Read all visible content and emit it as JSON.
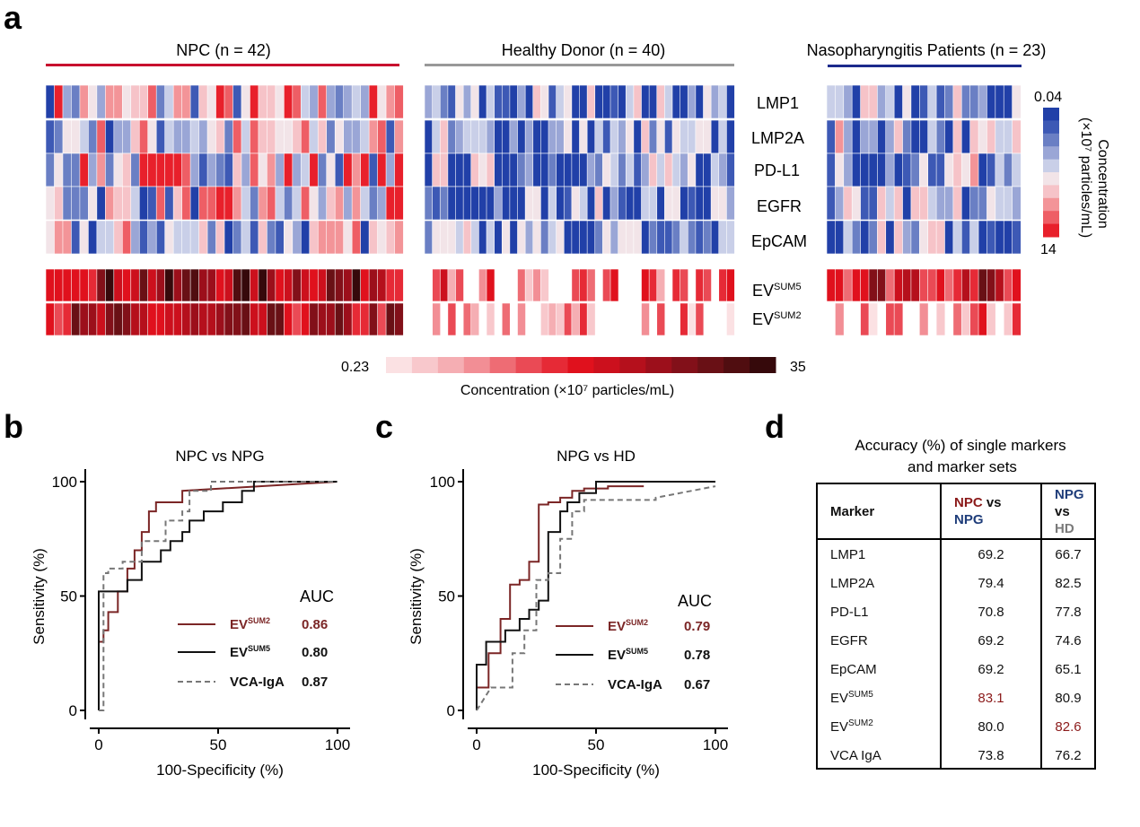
{
  "panel_letters": {
    "a": "a",
    "b": "b",
    "c": "c",
    "d": "d"
  },
  "heatmap": {
    "groups": [
      {
        "label": "NPC (n = 42)",
        "n": 42,
        "color": "#c8102e"
      },
      {
        "label": "Healthy Donor (n = 40)",
        "n": 40,
        "color": "#999999"
      },
      {
        "label": "Nasopharyngitis Patients (n = 23)",
        "n": 23,
        "color": "#1c2a8c"
      }
    ],
    "markers": [
      "LMP1",
      "LMP2A",
      "PD-L1",
      "EGFR",
      "EpCAM"
    ],
    "sum_rows": [
      {
        "base": "EV",
        "sup": "SUM5"
      },
      {
        "base": "EV",
        "sup": "SUM2"
      }
    ],
    "marker_scale": {
      "min_label": "0.04",
      "max_label": "14",
      "title": "Concentration",
      "unit": "(×10⁷ particles/mL)",
      "colors": [
        "#2140a8",
        "#3d59b5",
        "#6a7fc4",
        "#9aa6d6",
        "#c9cfe8",
        "#f2e4e8",
        "#f6c3c8",
        "#f39498",
        "#ee5e65",
        "#e8202b"
      ]
    },
    "sum_scale": {
      "min_label": "0.23",
      "max_label": "35",
      "title": "Concentration (×10⁷ particles/mL)",
      "colors": [
        "#fbe1e3",
        "#f8c8cc",
        "#f5aeb3",
        "#f28e95",
        "#ee6c74",
        "#ea4a55",
        "#e62a36",
        "#e0111d",
        "#cc101d",
        "#b5101c",
        "#9c0f1b",
        "#821019",
        "#691015",
        "#500d10",
        "#36090b"
      ]
    }
  },
  "chart_data": [
    {
      "type": "line",
      "panel": "b",
      "title": "NPC vs NPG",
      "xlabel": "100-Specificity (%)",
      "ylabel": "Sensitivity (%)",
      "xlim": [
        0,
        100
      ],
      "ylim": [
        0,
        100
      ],
      "xticks": [
        0,
        50,
        100
      ],
      "yticks": [
        0,
        50,
        100
      ],
      "legend_title": "AUC",
      "series": [
        {
          "name": "EVSUM2",
          "name_base": "EV",
          "name_sup": "SUM2",
          "auc": "0.86",
          "color": "#7b2626",
          "dash": "",
          "x": [
            0,
            0,
            2,
            2,
            4,
            4,
            8,
            8,
            12,
            12,
            15,
            15,
            18,
            18,
            21,
            21,
            24,
            24,
            26,
            26,
            35,
            35,
            100
          ],
          "y": [
            0,
            30,
            30,
            35,
            35,
            43,
            43,
            52,
            52,
            62,
            62,
            70,
            70,
            78,
            78,
            87,
            87,
            91,
            91,
            91,
            91,
            96,
            100
          ]
        },
        {
          "name": "EVSUM5",
          "name_base": "EV",
          "name_sup": "SUM5",
          "auc": "0.80",
          "color": "#111111",
          "dash": "",
          "x": [
            0,
            0,
            12,
            12,
            18,
            18,
            26,
            26,
            30,
            30,
            35,
            35,
            38,
            38,
            44,
            44,
            52,
            52,
            60,
            60,
            65,
            65,
            75,
            75,
            100
          ],
          "y": [
            0,
            52,
            52,
            57,
            57,
            65,
            65,
            70,
            70,
            74,
            74,
            78,
            78,
            83,
            83,
            87,
            87,
            91,
            91,
            96,
            96,
            100,
            100,
            100,
            100
          ]
        },
        {
          "name": "VCA-IgA",
          "auc": "0.87",
          "color": "#777777",
          "dash": "6,4",
          "x": [
            0,
            2,
            2,
            4,
            4,
            10,
            10,
            18,
            18,
            28,
            28,
            35,
            35,
            38,
            38,
            47,
            47,
            100
          ],
          "y": [
            0,
            0,
            60,
            60,
            62,
            62,
            65,
            65,
            74,
            74,
            83,
            83,
            87,
            87,
            96,
            96,
            100,
            100
          ]
        }
      ]
    },
    {
      "type": "line",
      "panel": "c",
      "title": "NPG vs HD",
      "xlabel": "100-Specificity (%)",
      "ylabel": "Sensitivity (%)",
      "xlim": [
        0,
        100
      ],
      "ylim": [
        0,
        100
      ],
      "xticks": [
        0,
        50,
        100
      ],
      "yticks": [
        0,
        50,
        100
      ],
      "legend_title": "AUC",
      "series": [
        {
          "name": "EVSUM2",
          "name_base": "EV",
          "name_sup": "SUM2",
          "auc": "0.79",
          "color": "#7b2626",
          "dash": "",
          "x": [
            0,
            0,
            5,
            5,
            10,
            10,
            14,
            14,
            18,
            18,
            22,
            22,
            26,
            26,
            30,
            30,
            35,
            35,
            40,
            40,
            45,
            45,
            55,
            55,
            70
          ],
          "y": [
            0,
            10,
            10,
            25,
            25,
            40,
            40,
            55,
            55,
            57,
            57,
            65,
            65,
            90,
            90,
            91,
            91,
            93,
            93,
            96,
            96,
            97,
            97,
            98,
            98
          ]
        },
        {
          "name": "EVSUM5",
          "name_base": "EV",
          "name_sup": "SUM5",
          "auc": "0.78",
          "color": "#111111",
          "dash": "",
          "x": [
            0,
            0,
            4,
            4,
            12,
            12,
            18,
            18,
            22,
            22,
            26,
            26,
            30,
            30,
            35,
            35,
            38,
            38,
            43,
            43,
            50,
            50,
            100
          ],
          "y": [
            0,
            20,
            20,
            30,
            30,
            35,
            35,
            40,
            40,
            44,
            44,
            48,
            48,
            78,
            78,
            87,
            87,
            91,
            91,
            95,
            95,
            100,
            100
          ]
        },
        {
          "name": "VCA-IgA",
          "auc": "0.67",
          "color": "#777777",
          "dash": "6,4",
          "x": [
            0,
            3,
            6,
            15,
            15,
            20,
            20,
            25,
            25,
            30,
            30,
            35,
            35,
            40,
            40,
            45,
            45,
            75,
            75,
            100
          ],
          "y": [
            0,
            5,
            10,
            10,
            25,
            25,
            35,
            35,
            57,
            57,
            60,
            60,
            75,
            75,
            87,
            87,
            92,
            92,
            93,
            98
          ]
        }
      ]
    }
  ],
  "table": {
    "title_line1": "Accuracy (%) of single markers",
    "title_line2": "and marker sets",
    "header": {
      "marker": "Marker",
      "col1_a": "NPC",
      "col1_vs": " vs",
      "col1_b": "NPG",
      "col2_a": "NPG",
      "col2_vs": " vs",
      "col2_b": "HD"
    },
    "rows": [
      {
        "marker": "LMP1",
        "v1": "69.2",
        "v2": "66.7"
      },
      {
        "marker": "LMP2A",
        "v1": "79.4",
        "v2": "82.5"
      },
      {
        "marker": "PD-L1",
        "v1": "70.8",
        "v2": "77.8"
      },
      {
        "marker": "EGFR",
        "v1": "69.2",
        "v2": "74.6"
      },
      {
        "marker": "EpCAM",
        "v1": "69.2",
        "v2": "65.1"
      },
      {
        "marker_base": "EV",
        "marker_sup": "SUM5",
        "v1": "83.1",
        "v2": "80.9",
        "highlight": "v1"
      },
      {
        "marker_base": "EV",
        "marker_sup": "SUM2",
        "v1": "80.0",
        "v2": "82.6",
        "highlight": "v2"
      },
      {
        "marker": "VCA IgA",
        "v1": "73.8",
        "v2": "76.2"
      }
    ]
  }
}
